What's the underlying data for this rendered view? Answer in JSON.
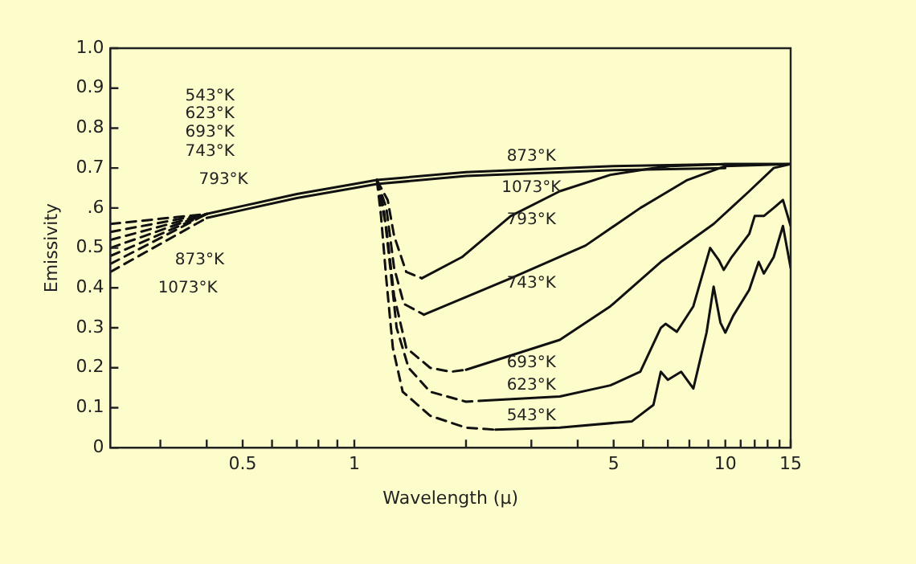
{
  "chart_data": {
    "type": "line",
    "xlabel": "Wavelength (μ)",
    "ylabel": "Emissivity",
    "log": "x",
    "xlim": [
      0.22,
      15
    ],
    "ylim": [
      0,
      1
    ],
    "xticks": [
      {
        "value": 0.3,
        "label": null
      },
      {
        "value": 0.4,
        "label": null
      },
      0.5,
      {
        "value": 0.6,
        "label": null
      },
      {
        "value": 0.7,
        "label": null
      },
      {
        "value": 0.8,
        "label": null
      },
      {
        "value": 0.9,
        "label": null
      },
      1,
      {
        "value": 2,
        "label": null
      },
      {
        "value": 3,
        "label": null
      },
      {
        "value": 4,
        "label": null
      },
      5,
      {
        "value": 6,
        "label": null
      },
      {
        "value": 7,
        "label": null
      },
      {
        "value": 8,
        "label": null
      },
      {
        "value": 9,
        "label": null
      },
      10,
      {
        "value": 11,
        "label": null
      },
      {
        "value": 12,
        "label": null
      },
      {
        "value": 13,
        "label": null
      },
      {
        "value": 14,
        "label": null
      },
      15
    ],
    "yticks": [
      0,
      {
        "value": 0.1,
        "label": "0.1"
      },
      {
        "value": 0.2,
        "label": "0.2"
      },
      {
        "value": 0.3,
        "label": "0.3"
      },
      {
        "value": 0.4,
        "label": "0.4"
      },
      {
        "value": 0.5,
        "label": "0.5"
      },
      {
        "value": 0.6,
        "label": ".6"
      },
      {
        "value": 0.7,
        "label": "0.7"
      },
      {
        "value": 0.8,
        "label": "0.8"
      },
      {
        "value": 0.9,
        "label": "0.9"
      },
      {
        "value": 1,
        "label": "1.0"
      }
    ],
    "grid": false,
    "legend": false,
    "marker": "none",
    "series": [
      {
        "name": "873°K",
        "color": "#111111",
        "line_style": "solid",
        "x": [
          0.4,
          0.5,
          0.7,
          1,
          1.15,
          2,
          5,
          10,
          15
        ],
        "values": [
          0.585,
          0.605,
          0.635,
          0.66,
          0.67,
          0.69,
          0.705,
          0.71,
          0.71
        ]
      },
      {
        "color": "#111111",
        "line_style": "dashed",
        "x": [
          0.22,
          0.4
        ],
        "values": [
          0.56,
          0.585
        ]
      },
      {
        "name": "1073°K",
        "color": "#111111",
        "line_style": "solid",
        "x": [
          0.4,
          0.5,
          0.7,
          1,
          1.15,
          2,
          5,
          10
        ],
        "values": [
          0.575,
          0.595,
          0.625,
          0.65,
          0.66,
          0.68,
          0.695,
          0.7
        ]
      },
      {
        "color": "#111111",
        "line_style": "dashed",
        "x": [
          0.22,
          0.4
        ],
        "values": [
          0.44,
          0.575
        ]
      },
      {
        "name": "793°K",
        "color": "#111111",
        "line_style": "solid",
        "x": [
          1.52,
          1.95,
          2.64,
          3.58,
          4.9,
          6.4,
          7.1,
          10,
          15
        ],
        "values": [
          0.424,
          0.477,
          0.58,
          0.642,
          0.683,
          0.7,
          0.705,
          0.71,
          0.71
        ]
      },
      {
        "color": "#111111",
        "line_style": "dashed",
        "x": [
          0.22,
          0.4,
          0.8,
          1.15,
          1.23,
          1.28,
          1.38,
          1.52
        ],
        "values": [
          0.54,
          0.585,
          null,
          0.67,
          0.62,
          0.53,
          0.44,
          0.424
        ]
      },
      {
        "name": "743°K",
        "color": "#111111",
        "line_style": "solid",
        "x": [
          1.54,
          2.64,
          4.2,
          5.9,
          7.9,
          10,
          15
        ],
        "values": [
          0.333,
          0.424,
          0.506,
          0.6,
          0.67,
          0.705,
          0.71
        ]
      },
      {
        "color": "#111111",
        "line_style": "dashed",
        "x": [
          0.22,
          0.4,
          0.8,
          1.15,
          1.22,
          1.28,
          1.36,
          1.54
        ],
        "values": [
          0.52,
          0.585,
          null,
          0.67,
          0.6,
          0.45,
          0.36,
          0.333
        ]
      },
      {
        "name": "693°K",
        "color": "#111111",
        "line_style": "solid",
        "x": [
          2,
          3.58,
          4.9,
          6.7,
          9.3,
          11.6,
          13.5,
          15
        ],
        "values": [
          0.195,
          0.27,
          0.354,
          0.465,
          0.56,
          0.642,
          0.7,
          0.71
        ]
      },
      {
        "color": "#111111",
        "line_style": "dashed",
        "x": [
          0.22,
          0.4,
          0.8,
          1.15,
          1.22,
          1.28,
          1.38,
          1.6,
          1.82,
          2
        ],
        "values": [
          0.5,
          0.585,
          null,
          0.67,
          0.55,
          0.38,
          0.25,
          0.2,
          0.19,
          0.195
        ]
      },
      {
        "name": "623°K",
        "color": "#111111",
        "line_style": "solid",
        "x": [
          2.26,
          3.58,
          4.9,
          5.9,
          6.7,
          6.9,
          7.4,
          8.2,
          9.1,
          9.6,
          9.9,
          10.4,
          11.6,
          12,
          12.7,
          13.5,
          14.3,
          15
        ],
        "values": [
          0.118,
          0.128,
          0.156,
          0.19,
          0.3,
          0.31,
          0.29,
          0.354,
          0.5,
          0.47,
          0.445,
          0.477,
          0.535,
          0.58,
          0.58,
          0.6,
          0.62,
          0.555
        ]
      },
      {
        "color": "#111111",
        "line_style": "dashed",
        "x": [
          0.22,
          0.4,
          0.8,
          1.15,
          1.2,
          1.25,
          1.3,
          1.4,
          1.6,
          2,
          2.26
        ],
        "values": [
          0.48,
          0.585,
          null,
          0.67,
          0.6,
          0.45,
          0.3,
          0.2,
          0.14,
          0.115,
          0.118
        ]
      },
      {
        "name": "543°K",
        "color": "#111111",
        "line_style": "solid",
        "x": [
          2.4,
          3.58,
          5.6,
          6.4,
          6.7,
          7,
          7.6,
          8.2,
          8.9,
          9.3,
          9.7,
          10,
          10.5,
          11.6,
          12.3,
          12.7,
          13.5,
          14.3,
          15
        ],
        "values": [
          0.045,
          0.05,
          0.066,
          0.107,
          0.19,
          0.17,
          0.19,
          0.148,
          0.288,
          0.403,
          0.313,
          0.288,
          0.33,
          0.395,
          0.465,
          0.436,
          0.477,
          0.555,
          0.45
        ]
      },
      {
        "color": "#111111",
        "line_style": "dashed",
        "x": [
          0.22,
          0.4,
          0.8,
          1.15,
          1.18,
          1.22,
          1.27,
          1.35,
          1.6,
          2,
          2.4
        ],
        "values": [
          0.46,
          0.585,
          null,
          0.67,
          0.58,
          0.42,
          0.25,
          0.14,
          0.08,
          0.05,
          0.045
        ]
      }
    ],
    "annotations": [
      "543°K",
      "623°K",
      "693°K",
      "743°K",
      "793°K",
      "873°K",
      "1073°K"
    ]
  }
}
